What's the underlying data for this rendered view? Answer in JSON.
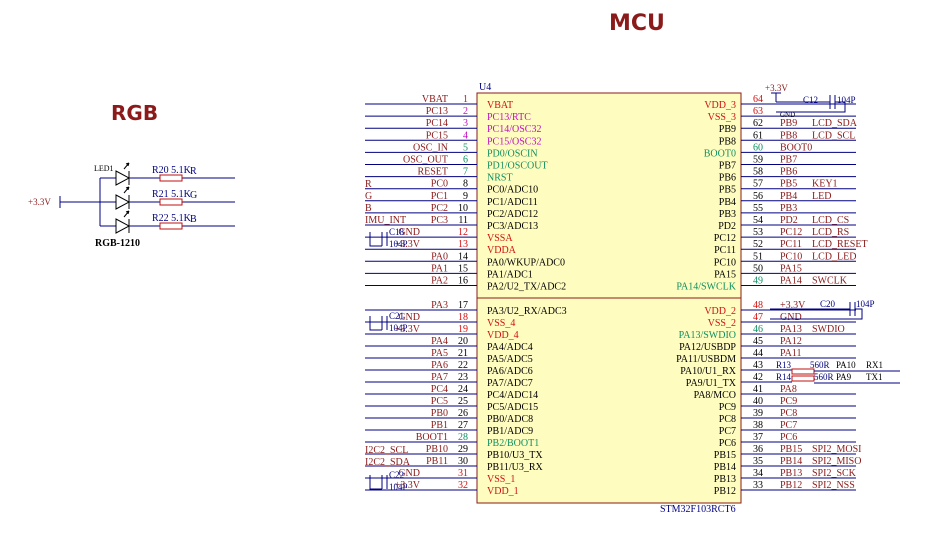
{
  "titles": {
    "mcu": "MCU",
    "rgb": "RGB"
  },
  "chip": {
    "ref": "U4",
    "part": "STM32F103RCT6"
  },
  "colors": {
    "wire": "#000080",
    "pin_red": "#d01010",
    "pin_purple": "#c010c0",
    "pin_green": "#109060",
    "net": "#8b1a1a",
    "body": "#fffcc0",
    "body_border": "#8b1a1a",
    "blue_line": "#1a1aff"
  },
  "left_pins": [
    {
      "n": "1",
      "name": "VBAT",
      "net": "VBAT",
      "c": "red"
    },
    {
      "n": "2",
      "name": "PC13/RTC",
      "net": "PC13",
      "c": "purple"
    },
    {
      "n": "3",
      "name": "PC14/OSC32",
      "net": "PC14",
      "c": "purple"
    },
    {
      "n": "4",
      "name": "PC15/OSC32",
      "net": "PC15",
      "c": "purple"
    },
    {
      "n": "5",
      "name": "PD0/OSCIN",
      "net": "OSC_IN",
      "c": "green"
    },
    {
      "n": "6",
      "name": "PD1/OSCOUT",
      "net": "OSC_OUT",
      "c": "green"
    },
    {
      "n": "7",
      "name": "NRST",
      "net": "RESET",
      "c": "green"
    },
    {
      "n": "8",
      "name": "PC0/ADC10",
      "net": "PC0",
      "c": "black"
    },
    {
      "n": "9",
      "name": "PC1/ADC11",
      "net": "PC1",
      "c": "black"
    },
    {
      "n": "10",
      "name": "PC2/ADC12",
      "net": "PC2",
      "c": "black"
    },
    {
      "n": "11",
      "name": "PC3/ADC13",
      "net": "PC3",
      "c": "black"
    },
    {
      "n": "12",
      "name": "VSSA",
      "net": "GND",
      "c": "red"
    },
    {
      "n": "13",
      "name": "VDDA",
      "net": "+3.3V",
      "c": "red"
    },
    {
      "n": "14",
      "name": "PA0/WKUP/ADC0",
      "net": "PA0",
      "c": "black"
    },
    {
      "n": "15",
      "name": "PA1/ADC1",
      "net": "PA1",
      "c": "black"
    },
    {
      "n": "16",
      "name": "PA2/U2_TX/ADC2",
      "net": "PA2",
      "c": "black"
    },
    {
      "n": "17",
      "name": "PA3/U2_RX/ADC3",
      "net": "PA3",
      "c": "black"
    },
    {
      "n": "18",
      "name": "VSS_4",
      "net": "GND",
      "c": "red"
    },
    {
      "n": "19",
      "name": "VDD_4",
      "net": "+3.3V",
      "c": "red"
    },
    {
      "n": "20",
      "name": "PA4/ADC4",
      "net": "PA4",
      "c": "black"
    },
    {
      "n": "21",
      "name": "PA5/ADC5",
      "net": "PA5",
      "c": "black"
    },
    {
      "n": "22",
      "name": "PA6/ADC6",
      "net": "PA6",
      "c": "black"
    },
    {
      "n": "23",
      "name": "PA7/ADC7",
      "net": "PA7",
      "c": "black"
    },
    {
      "n": "24",
      "name": "PC4/ADC14",
      "net": "PC4",
      "c": "black"
    },
    {
      "n": "25",
      "name": "PC5/ADC15",
      "net": "PC5",
      "c": "black"
    },
    {
      "n": "26",
      "name": "PB0/ADC8",
      "net": "PB0",
      "c": "black"
    },
    {
      "n": "27",
      "name": "PB1/ADC9",
      "net": "PB1",
      "c": "black"
    },
    {
      "n": "28",
      "name": "PB2/BOOT1",
      "net": "BOOT1",
      "c": "green"
    },
    {
      "n": "29",
      "name": "PB10/U3_TX",
      "net": "PB10",
      "c": "black"
    },
    {
      "n": "30",
      "name": "PB11/U3_RX",
      "net": "PB11",
      "c": "black"
    },
    {
      "n": "31",
      "name": "VSS_1",
      "net": "GND",
      "c": "red"
    },
    {
      "n": "32",
      "name": "VDD_1",
      "net": "+3.3V",
      "c": "red"
    }
  ],
  "left_extra": {
    "r": "R",
    "g": "G",
    "b": "B",
    "imu_int": "IMU_INT",
    "i2c2_scl": "I2C2_SCL",
    "i2c2_sda": "I2C2_SDA",
    "c18": "C18",
    "c21": "C21",
    "c22": "C22",
    "cap": "104P"
  },
  "right_pins": [
    {
      "n": "64",
      "name": "VDD_3",
      "net": "",
      "c": "red"
    },
    {
      "n": "63",
      "name": "VSS_3",
      "net": "",
      "c": "red"
    },
    {
      "n": "62",
      "name": "PB9",
      "net": "PB9",
      "c": "black"
    },
    {
      "n": "61",
      "name": "PB8",
      "net": "PB8",
      "c": "black"
    },
    {
      "n": "60",
      "name": "BOOT0",
      "net": "BOOT0",
      "c": "green"
    },
    {
      "n": "59",
      "name": "PB7",
      "net": "PB7",
      "c": "black"
    },
    {
      "n": "58",
      "name": "PB6",
      "net": "PB6",
      "c": "black"
    },
    {
      "n": "57",
      "name": "PB5",
      "net": "PB5",
      "c": "black"
    },
    {
      "n": "56",
      "name": "PB4",
      "net": "PB4",
      "c": "black"
    },
    {
      "n": "55",
      "name": "PB3",
      "net": "PB3",
      "c": "black"
    },
    {
      "n": "54",
      "name": "PD2",
      "net": "PD2",
      "c": "black"
    },
    {
      "n": "53",
      "name": "PC12",
      "net": "PC12",
      "c": "black"
    },
    {
      "n": "52",
      "name": "PC11",
      "net": "PC11",
      "c": "black"
    },
    {
      "n": "51",
      "name": "PC10",
      "net": "PC10",
      "c": "black"
    },
    {
      "n": "50",
      "name": "PA15",
      "net": "PA15",
      "c": "black"
    },
    {
      "n": "49",
      "name": "PA14/SWCLK",
      "net": "PA14",
      "c": "green"
    },
    {
      "n": "48",
      "name": "VDD_2",
      "net": "+3.3V",
      "c": "red"
    },
    {
      "n": "47",
      "name": "VSS_2",
      "net": "GND",
      "c": "red"
    },
    {
      "n": "46",
      "name": "PA13/SWDIO",
      "net": "PA13",
      "c": "green"
    },
    {
      "n": "45",
      "name": "PA12/USBDP",
      "net": "PA12",
      "c": "black"
    },
    {
      "n": "44",
      "name": "PA11/USBDM",
      "net": "PA11",
      "c": "black"
    },
    {
      "n": "43",
      "name": "PA10/U1_RX",
      "net": "",
      "c": "black"
    },
    {
      "n": "42",
      "name": "PA9/U1_TX",
      "net": "",
      "c": "black"
    },
    {
      "n": "41",
      "name": "PA8/MCO",
      "net": "PA8",
      "c": "black"
    },
    {
      "n": "40",
      "name": "PC9",
      "net": "PC9",
      "c": "black"
    },
    {
      "n": "39",
      "name": "PC8",
      "net": "PC8",
      "c": "black"
    },
    {
      "n": "38",
      "name": "PC7",
      "net": "PC7",
      "c": "black"
    },
    {
      "n": "37",
      "name": "PC6",
      "net": "PC6",
      "c": "black"
    },
    {
      "n": "36",
      "name": "PB15",
      "net": "PB15",
      "c": "black"
    },
    {
      "n": "35",
      "name": "PB14",
      "net": "PB14",
      "c": "black"
    },
    {
      "n": "34",
      "name": "PB13",
      "net": "PB13",
      "c": "black"
    },
    {
      "n": "33",
      "name": "PB12",
      "net": "PB12",
      "c": "black"
    }
  ],
  "right_funcs": {
    "62": "LCD_SDA",
    "61": "LCD_SCL",
    "57": "KEY1",
    "56": "LED",
    "54": "LCD_CS",
    "53": "LCD_RS",
    "52": "LCD_RESET",
    "51": "LCD_LED",
    "49": "SWCLK",
    "46": "SWDIO",
    "36": "SPI2_MOSI",
    "35": "SPI2_MISO",
    "34": "SPI2_SCK",
    "33": "SPI2_NSS"
  },
  "right_extra": {
    "vcc_top": "+3.3V",
    "gnd_small": "GND",
    "c12": "C12",
    "c20": "C20",
    "cap": "104P",
    "r13": "R13",
    "r14": "R14",
    "res": "560R",
    "pa10": "PA10",
    "pa9": "PA9",
    "rx1": "RX1",
    "tx1": "TX1"
  },
  "rgb": {
    "led": "LED1",
    "vcc": "+3.3V",
    "part": "RGB-1210",
    "resistors": [
      {
        "ref": "R20",
        "val": "5.1K",
        "ch": "R"
      },
      {
        "ref": "R21",
        "val": "5.1K",
        "ch": "G"
      },
      {
        "ref": "R22",
        "val": "5.1K",
        "ch": "B"
      }
    ]
  }
}
